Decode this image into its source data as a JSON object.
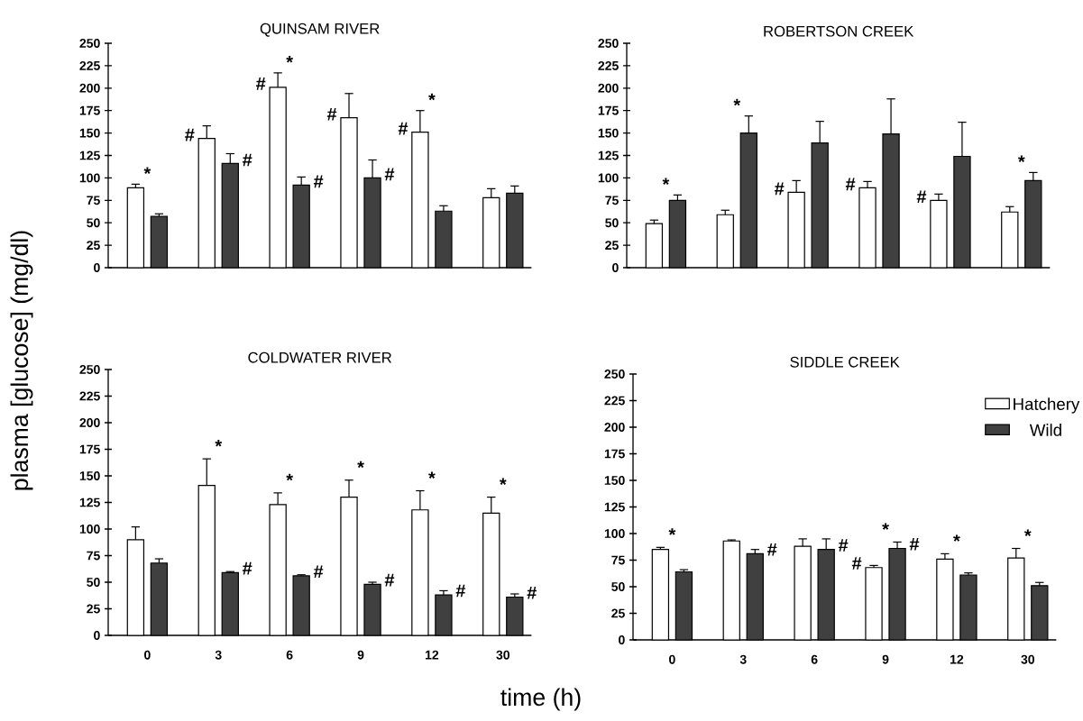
{
  "chart_data": [
    {
      "type": "bar",
      "title": "QUINSAM RIVER",
      "ylabel": "plasma [glucose] (mg/dl)",
      "categories": [
        "0",
        "3",
        "6",
        "9",
        "12",
        "30"
      ],
      "ylim": [
        0,
        250
      ],
      "yticks": [
        0,
        25,
        50,
        75,
        100,
        125,
        150,
        175,
        200,
        225,
        250
      ],
      "tick_labels": "y",
      "series": [
        {
          "color": "#ffffff",
          "values": [
            89,
            144,
            201,
            167,
            151,
            78
          ],
          "errors": [
            [
              89,
              93
            ],
            [
              144,
              158
            ],
            [
              201,
              217
            ],
            [
              167,
              194
            ],
            [
              151,
              175
            ],
            [
              78,
              88
            ]
          ]
        },
        {
          "color": "#404040",
          "values": [
            57,
            116,
            92,
            100,
            63,
            83
          ],
          "errors": [
            [
              57,
              60
            ],
            [
              116,
              127
            ],
            [
              92,
              101
            ],
            [
              100,
              120
            ],
            [
              63,
              69
            ],
            [
              83,
              91
            ]
          ]
        }
      ],
      "annotations": [
        "*",
        {
          "text": "#",
          "x": "3",
          "y": 144
        },
        {
          "text": "#",
          "x": "3",
          "y": 116
        },
        {
          "text": "#",
          "x": "6",
          "y": 201
        },
        "*",
        {
          "text": "#",
          "x": "6",
          "y": 92
        },
        {
          "text": "#",
          "x": "9",
          "y": 167
        },
        {
          "text": "#",
          "x": "9",
          "y": 100
        },
        {
          "text": "#",
          "x": "12",
          "y": 151
        },
        "*"
      ]
    },
    {
      "type": "bar",
      "title": "ROBERTSON CREEK",
      "categories": [
        "0",
        "3",
        "6",
        "9",
        "12",
        "30"
      ],
      "ylim": [
        0,
        250
      ],
      "yticks": [
        0,
        25,
        50,
        75,
        100,
        125,
        150,
        175,
        200,
        225,
        250
      ],
      "tick_labels": "y",
      "series": [
        {
          "color": "#ffffff",
          "values": [
            49,
            59,
            84,
            89,
            75,
            62
          ],
          "errors": [
            [
              49,
              53
            ],
            [
              59,
              64
            ],
            [
              84,
              97
            ],
            [
              89,
              96
            ],
            [
              75,
              82
            ],
            [
              62,
              68
            ]
          ]
        },
        {
          "color": "#404040",
          "values": [
            75,
            150,
            139,
            149,
            124,
            97
          ],
          "errors": [
            [
              75,
              81
            ],
            [
              150,
              169
            ],
            [
              139,
              163
            ],
            [
              149,
              188
            ],
            [
              124,
              162
            ],
            [
              97,
              106
            ]
          ]
        }
      ],
      "annotations": [
        "*",
        "*",
        {
          "text": "#",
          "x": "6",
          "y": 84
        },
        {
          "text": "#",
          "x": "9",
          "y": 89
        },
        {
          "text": "#",
          "x": "12",
          "y": 75
        },
        "*"
      ]
    },
    {
      "type": "bar",
      "title": "COLDWATER RIVER",
      "xlabel": "time (h)",
      "categories": [
        "0",
        "3",
        "6",
        "9",
        "12",
        "30"
      ],
      "ylim": [
        0,
        250
      ],
      "yticks": [
        0,
        25,
        50,
        75,
        100,
        125,
        150,
        175,
        200,
        225,
        250
      ],
      "series": [
        {
          "color": "#ffffff",
          "values": [
            90,
            141,
            123,
            130,
            118,
            115
          ],
          "errors": [
            [
              90,
              102
            ],
            [
              141,
              166
            ],
            [
              123,
              134
            ],
            [
              130,
              146
            ],
            [
              118,
              136
            ],
            [
              115,
              130
            ]
          ]
        },
        {
          "color": "#404040",
          "values": [
            68,
            59,
            56,
            48,
            38,
            36
          ],
          "errors": [
            [
              68,
              72
            ],
            [
              59,
              60
            ],
            [
              56,
              57
            ],
            [
              48,
              50
            ],
            [
              38,
              42
            ],
            [
              36,
              39
            ]
          ]
        }
      ],
      "annotations": [
        "*",
        {
          "text": "#",
          "x": "3",
          "y": 59
        },
        "*",
        {
          "text": "#",
          "x": "6",
          "y": 56
        },
        "*",
        {
          "text": "#",
          "x": "9",
          "y": 48
        },
        "*",
        {
          "text": "#",
          "x": "12",
          "y": 38
        },
        "*",
        {
          "text": "#",
          "x": "30",
          "y": 36
        }
      ]
    },
    {
      "type": "bar",
      "title": "SIDDLE CREEK",
      "categories": [
        "0",
        "3",
        "6",
        "9",
        "12",
        "30"
      ],
      "ylim": [
        0,
        250
      ],
      "yticks": [
        0,
        25,
        50,
        75,
        100,
        125,
        150,
        175,
        200,
        225,
        250
      ],
      "legend": "top right",
      "series": [
        {
          "name": "Hatchery",
          "color": "#ffffff",
          "values": [
            85,
            93,
            88,
            68,
            76,
            77
          ],
          "errors": [
            [
              85,
              87
            ],
            [
              93,
              94
            ],
            [
              88,
              95
            ],
            [
              68,
              70
            ],
            [
              76,
              81
            ],
            [
              77,
              86
            ]
          ]
        },
        {
          "name": "Wild",
          "color": "#404040",
          "values": [
            64,
            81,
            85,
            86,
            61,
            51
          ],
          "errors": [
            [
              64,
              66
            ],
            [
              81,
              85
            ],
            [
              85,
              95
            ],
            [
              86,
              92
            ],
            [
              61,
              63
            ],
            [
              51,
              54
            ]
          ]
        }
      ],
      "annotations": [
        "*",
        {
          "text": "#",
          "x": "3",
          "y": 81
        },
        {
          "text": "#",
          "x": "6",
          "y": 85
        },
        {
          "text": "#",
          "x": "9",
          "y": 68
        },
        "*",
        {
          "text": "#",
          "x": "9",
          "y": 86
        },
        "*",
        "*"
      ]
    }
  ]
}
